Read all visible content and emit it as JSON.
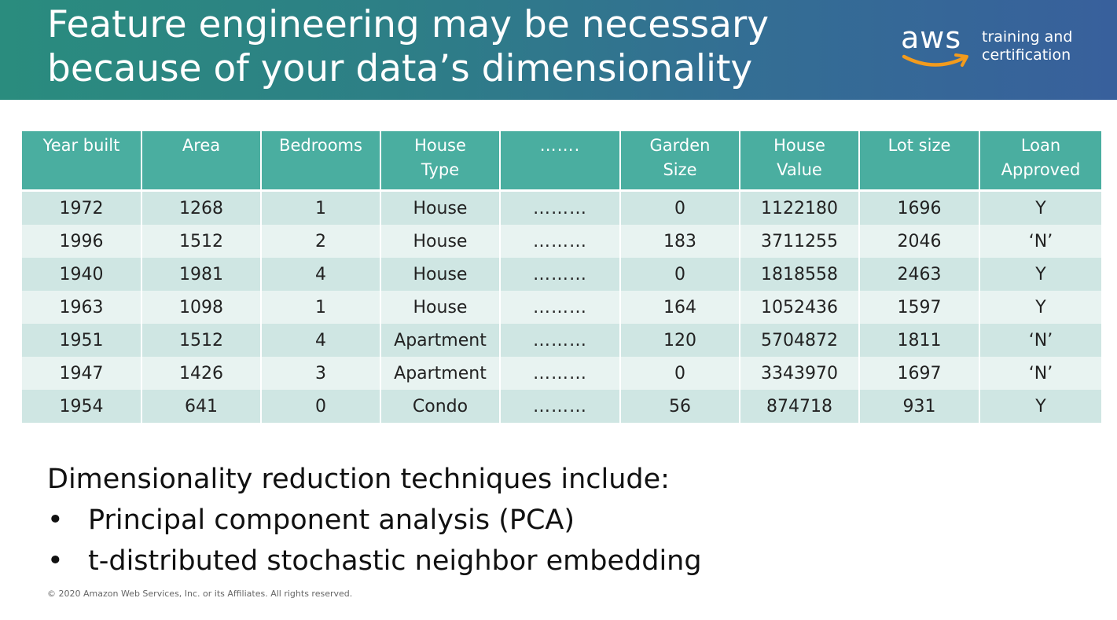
{
  "header": {
    "title_line1": "Feature engineering may be necessary",
    "title_line2": "because of your data’s dimensionality",
    "logo_text": "aws",
    "logo_tag_line1": "training and",
    "logo_tag_line2": "certification"
  },
  "colors": {
    "header_start": "#2a8c7e",
    "header_end": "#38609c",
    "table_header": "#4aaea0",
    "row_odd": "#cfe6e3",
    "row_even": "#e8f3f1",
    "logo_smile": "#f29b1d"
  },
  "table": {
    "headers": [
      [
        "Year built"
      ],
      [
        "Area"
      ],
      [
        "Bedrooms"
      ],
      [
        "House",
        "Type"
      ],
      [
        "……."
      ],
      [
        "Garden",
        "Size"
      ],
      [
        "House",
        "Value"
      ],
      [
        "Lot size"
      ],
      [
        "Loan",
        "Approved"
      ]
    ],
    "rows": [
      [
        "1972",
        "1268",
        "1",
        "House",
        "………",
        "0",
        "1122180",
        "1696",
        "Y"
      ],
      [
        "1996",
        "1512",
        "2",
        "House",
        "………",
        "183",
        "3711255",
        "2046",
        "‘N’"
      ],
      [
        "1940",
        "1981",
        "4",
        "House",
        "………",
        "0",
        "1818558",
        "2463",
        "Y"
      ],
      [
        "1963",
        "1098",
        "1",
        "House",
        "………",
        "164",
        "1052436",
        "1597",
        "Y"
      ],
      [
        "1951",
        "1512",
        "4",
        "Apartment",
        "………",
        "120",
        "5704872",
        "1811",
        "‘N’"
      ],
      [
        "1947",
        "1426",
        "3",
        "Apartment",
        "………",
        "0",
        "3343970",
        "1697",
        "‘N’"
      ],
      [
        "1954",
        "641",
        "0",
        "Condo",
        "………",
        "56",
        "874718",
        "931",
        "Y"
      ]
    ]
  },
  "body": {
    "lead": "Dimensionality reduction techniques include:",
    "bullet_symbol": "•",
    "items": [
      "Principal component analysis (PCA)",
      "t-distributed stochastic neighbor embedding"
    ]
  },
  "footer": {
    "copyright": "© 2020 Amazon Web Services, Inc. or its Affiliates. All rights reserved."
  }
}
